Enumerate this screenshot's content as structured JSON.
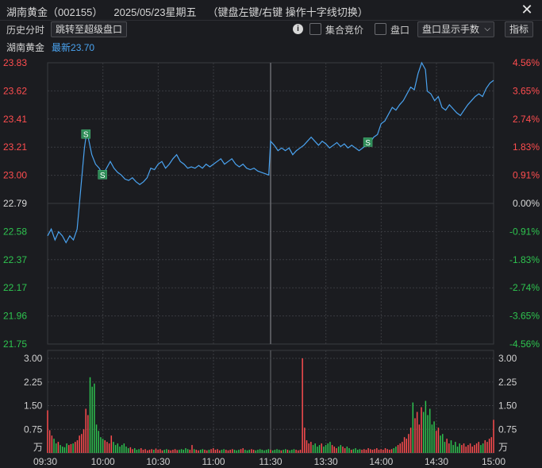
{
  "window": {
    "stock_name": "湖南黄金",
    "code": "（002155）",
    "date": "2025/05/23星期五",
    "hint": "（键盘左键/右键 操作十字线切换）"
  },
  "toolbar": {
    "label": "历史分时",
    "jump_button": "跳转至超级盘口",
    "auction_label": "集合竞价",
    "orderbook_label": "盘口",
    "dropdown_label": "盘口显示手数",
    "indicator_button": "指标"
  },
  "quote": {
    "name": "湖南黄金",
    "last_label": "最新",
    "last_value": "23.70"
  },
  "colors": {
    "up": "#ff4d4f",
    "down": "#2ec44f",
    "line": "#4aa3f0",
    "flat": "#d8d8d8",
    "grid": "#3a3b40",
    "signal": "#2e8b57"
  },
  "chart_data": {
    "type": "line",
    "prev_close": 22.79,
    "ylim": [
      21.75,
      23.83
    ],
    "price_ticks": [
      "23.83",
      "23.62",
      "23.41",
      "23.21",
      "23.00",
      "22.79",
      "22.58",
      "22.37",
      "22.17",
      "21.96",
      "21.75"
    ],
    "pct_ticks": [
      "4.56%",
      "3.65%",
      "2.74%",
      "1.83%",
      "0.91%",
      "0.00%",
      "-0.91%",
      "-1.83%",
      "-2.74%",
      "-3.65%",
      "-4.56%"
    ],
    "x_ticks": [
      "09:30",
      "10:00",
      "10:30",
      "11:00",
      "11:30",
      "13:30",
      "14:00",
      "14:30",
      "15:00"
    ],
    "volume_ticks": [
      "3.00",
      "2.25",
      "1.50",
      "0.75"
    ],
    "volume_unit": "万",
    "volume_ylim": [
      0,
      3.0
    ],
    "price_series": [
      [
        0,
        22.55
      ],
      [
        2,
        22.6
      ],
      [
        4,
        22.52
      ],
      [
        6,
        22.58
      ],
      [
        8,
        22.55
      ],
      [
        10,
        22.5
      ],
      [
        12,
        22.55
      ],
      [
        14,
        22.52
      ],
      [
        16,
        22.6
      ],
      [
        18,
        22.9
      ],
      [
        20,
        23.2
      ],
      [
        21,
        23.3
      ],
      [
        22,
        23.28
      ],
      [
        24,
        23.15
      ],
      [
        26,
        23.08
      ],
      [
        28,
        23.05
      ],
      [
        30,
        23.0
      ],
      [
        32,
        23.05
      ],
      [
        34,
        23.1
      ],
      [
        36,
        23.05
      ],
      [
        38,
        23.02
      ],
      [
        40,
        23.0
      ],
      [
        42,
        22.97
      ],
      [
        44,
        22.96
      ],
      [
        46,
        22.98
      ],
      [
        48,
        22.95
      ],
      [
        50,
        22.93
      ],
      [
        52,
        22.95
      ],
      [
        54,
        22.98
      ],
      [
        56,
        23.05
      ],
      [
        58,
        23.04
      ],
      [
        60,
        23.08
      ],
      [
        62,
        23.1
      ],
      [
        64,
        23.05
      ],
      [
        66,
        23.08
      ],
      [
        68,
        23.12
      ],
      [
        70,
        23.15
      ],
      [
        72,
        23.1
      ],
      [
        74,
        23.08
      ],
      [
        76,
        23.05
      ],
      [
        78,
        23.06
      ],
      [
        80,
        23.05
      ],
      [
        82,
        23.07
      ],
      [
        84,
        23.05
      ],
      [
        86,
        23.08
      ],
      [
        88,
        23.06
      ],
      [
        90,
        23.08
      ],
      [
        92,
        23.1
      ],
      [
        94,
        23.12
      ],
      [
        96,
        23.08
      ],
      [
        98,
        23.1
      ],
      [
        100,
        23.12
      ],
      [
        102,
        23.08
      ],
      [
        104,
        23.06
      ],
      [
        106,
        23.08
      ],
      [
        108,
        23.05
      ],
      [
        110,
        23.04
      ],
      [
        112,
        23.05
      ],
      [
        114,
        23.03
      ],
      [
        116,
        23.02
      ],
      [
        118,
        23.01
      ],
      [
        120,
        23.0
      ],
      [
        121,
        23.25
      ],
      [
        123,
        23.22
      ],
      [
        125,
        23.18
      ],
      [
        127,
        23.2
      ],
      [
        129,
        23.18
      ],
      [
        131,
        23.2
      ],
      [
        133,
        23.15
      ],
      [
        135,
        23.18
      ],
      [
        137,
        23.2
      ],
      [
        139,
        23.22
      ],
      [
        141,
        23.25
      ],
      [
        143,
        23.28
      ],
      [
        145,
        23.25
      ],
      [
        147,
        23.22
      ],
      [
        149,
        23.25
      ],
      [
        151,
        23.23
      ],
      [
        153,
        23.2
      ],
      [
        155,
        23.22
      ],
      [
        157,
        23.24
      ],
      [
        159,
        23.21
      ],
      [
        161,
        23.23
      ],
      [
        163,
        23.2
      ],
      [
        165,
        23.22
      ],
      [
        167,
        23.2
      ],
      [
        169,
        23.18
      ],
      [
        171,
        23.2
      ],
      [
        173,
        23.22
      ],
      [
        175,
        23.24
      ],
      [
        177,
        23.28
      ],
      [
        179,
        23.3
      ],
      [
        181,
        23.38
      ],
      [
        183,
        23.4
      ],
      [
        185,
        23.45
      ],
      [
        187,
        23.5
      ],
      [
        189,
        23.48
      ],
      [
        191,
        23.52
      ],
      [
        193,
        23.55
      ],
      [
        195,
        23.6
      ],
      [
        197,
        23.65
      ],
      [
        199,
        23.63
      ],
      [
        201,
        23.75
      ],
      [
        203,
        23.83
      ],
      [
        205,
        23.78
      ],
      [
        206,
        23.62
      ],
      [
        208,
        23.6
      ],
      [
        210,
        23.55
      ],
      [
        212,
        23.58
      ],
      [
        214,
        23.5
      ],
      [
        216,
        23.48
      ],
      [
        218,
        23.52
      ],
      [
        220,
        23.49
      ],
      [
        222,
        23.46
      ],
      [
        224,
        23.44
      ],
      [
        226,
        23.48
      ],
      [
        228,
        23.52
      ],
      [
        230,
        23.55
      ],
      [
        232,
        23.58
      ],
      [
        234,
        23.6
      ],
      [
        236,
        23.58
      ],
      [
        238,
        23.64
      ],
      [
        240,
        23.68
      ],
      [
        242,
        23.7
      ]
    ],
    "volume_series": [
      1.35,
      0.72,
      0.55,
      0.45,
      0.3,
      0.35,
      0.25,
      0.2,
      0.18,
      0.3,
      0.25,
      0.28,
      0.3,
      0.35,
      0.4,
      0.55,
      0.6,
      0.75,
      1.4,
      1.2,
      2.4,
      2.1,
      2.2,
      0.9,
      0.7,
      0.5,
      0.45,
      0.4,
      0.35,
      0.3,
      0.55,
      0.35,
      0.25,
      0.3,
      0.2,
      0.25,
      0.3,
      0.2,
      0.15,
      0.18,
      0.12,
      0.15,
      0.1,
      0.12,
      0.15,
      0.1,
      0.12,
      0.08,
      0.1,
      0.12,
      0.1,
      0.14,
      0.1,
      0.12,
      0.08,
      0.1,
      0.12,
      0.1,
      0.08,
      0.1,
      0.12,
      0.09,
      0.1,
      0.12,
      0.1,
      0.15,
      0.12,
      0.1,
      0.25,
      0.12,
      0.1,
      0.08,
      0.1,
      0.12,
      0.1,
      0.08,
      0.1,
      0.12,
      0.15,
      0.1,
      0.12,
      0.08,
      0.1,
      0.12,
      0.1,
      0.08,
      0.1,
      0.12,
      0.1,
      0.08,
      0.1,
      0.12,
      0.15,
      0.1,
      0.08,
      0.1,
      0.12,
      0.1,
      0.08,
      0.1,
      0.12,
      0.1,
      0.08,
      0.1,
      0.12,
      0.1,
      0.08,
      0.1,
      0.12,
      0.1,
      0.08,
      0.1,
      0.12,
      0.1,
      0.08,
      0.1,
      0.12,
      0.1,
      0.08,
      0.1,
      3.0,
      0.8,
      0.4,
      0.3,
      0.35,
      0.25,
      0.3,
      0.2,
      0.25,
      0.3,
      0.2,
      0.25,
      0.3,
      0.35,
      0.25,
      0.2,
      0.15,
      0.2,
      0.25,
      0.2,
      0.15,
      0.2,
      0.15,
      0.1,
      0.12,
      0.15,
      0.1,
      0.12,
      0.1,
      0.12,
      0.1,
      0.15,
      0.12,
      0.1,
      0.12,
      0.15,
      0.1,
      0.12,
      0.1,
      0.15,
      0.12,
      0.1,
      0.12,
      0.15,
      0.2,
      0.25,
      0.3,
      0.35,
      0.5,
      0.45,
      0.6,
      0.8,
      1.6,
      1.1,
      1.3,
      0.9,
      1.45,
      1.3,
      1.65,
      1.2,
      1.4,
      0.9,
      1.0,
      0.7,
      0.8,
      0.55,
      0.6,
      0.35,
      0.45,
      0.3,
      0.4,
      0.25,
      0.35,
      0.2,
      0.3,
      0.25,
      0.3,
      0.2,
      0.25,
      0.3,
      0.2,
      0.25,
      0.3,
      0.35,
      0.25,
      0.3,
      0.4,
      0.35,
      0.45,
      0.5,
      1.05
    ],
    "signals": [
      {
        "label": "S",
        "t": 21,
        "price": 23.3
      },
      {
        "label": "S",
        "t": 30,
        "price": 23.0
      },
      {
        "label": "S",
        "t": 174,
        "price": 23.24
      }
    ]
  }
}
